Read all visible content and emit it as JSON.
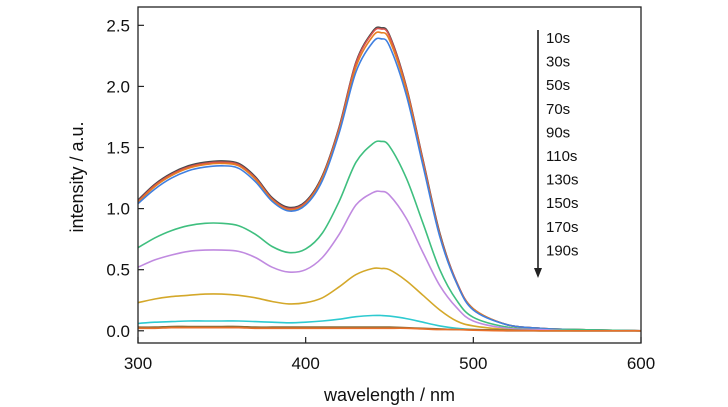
{
  "chart_data": {
    "type": "line",
    "xlabel": "wavelength / nm",
    "ylabel": "intensity / a.u.",
    "xlim": [
      300,
      600
    ],
    "ylim": [
      -0.1,
      2.65
    ],
    "xticks": [
      300,
      400,
      500,
      600
    ],
    "yticks": [
      0.0,
      0.5,
      1.0,
      1.5,
      2.0,
      2.5
    ],
    "ytick_labels": [
      "0.0",
      "0.5",
      "1.0",
      "1.5",
      "2.0",
      "2.5"
    ],
    "grid": false,
    "legend_position": "top-right",
    "legend_arrow": "down",
    "x": [
      300,
      310,
      320,
      330,
      340,
      350,
      360,
      370,
      380,
      390,
      400,
      410,
      420,
      430,
      440,
      445,
      450,
      460,
      470,
      480,
      490,
      500,
      520,
      540,
      560,
      600
    ],
    "series": [
      {
        "name": "10s",
        "color": "#4a4a4a",
        "values": [
          1.07,
          1.2,
          1.29,
          1.35,
          1.38,
          1.39,
          1.37,
          1.26,
          1.09,
          1.01,
          1.06,
          1.27,
          1.67,
          2.2,
          2.45,
          2.48,
          2.42,
          2.0,
          1.4,
          0.8,
          0.4,
          0.18,
          0.05,
          0.02,
          0.01,
          0.0
        ]
      },
      {
        "name": "30s",
        "color": "#d9534f",
        "values": [
          1.06,
          1.19,
          1.28,
          1.34,
          1.37,
          1.38,
          1.36,
          1.25,
          1.08,
          1.0,
          1.05,
          1.26,
          1.66,
          2.19,
          2.44,
          2.47,
          2.41,
          1.99,
          1.39,
          0.79,
          0.4,
          0.18,
          0.05,
          0.02,
          0.01,
          0.0
        ]
      },
      {
        "name": "50s",
        "color": "#e67e22",
        "values": [
          1.05,
          1.18,
          1.27,
          1.33,
          1.36,
          1.37,
          1.35,
          1.24,
          1.07,
          0.99,
          1.04,
          1.25,
          1.64,
          2.16,
          2.41,
          2.44,
          2.38,
          1.97,
          1.37,
          0.78,
          0.39,
          0.18,
          0.05,
          0.02,
          0.01,
          0.0
        ]
      },
      {
        "name": "70s",
        "color": "#3f7fe0",
        "values": [
          1.04,
          1.16,
          1.25,
          1.31,
          1.34,
          1.35,
          1.33,
          1.22,
          1.06,
          0.98,
          1.03,
          1.23,
          1.62,
          2.12,
          2.36,
          2.39,
          2.33,
          1.93,
          1.35,
          0.77,
          0.39,
          0.17,
          0.05,
          0.02,
          0.01,
          0.0
        ]
      },
      {
        "name": "90s",
        "color": "#3fbf7f",
        "values": [
          0.68,
          0.76,
          0.82,
          0.86,
          0.88,
          0.88,
          0.86,
          0.79,
          0.69,
          0.64,
          0.67,
          0.8,
          1.06,
          1.38,
          1.53,
          1.55,
          1.51,
          1.25,
          0.88,
          0.5,
          0.25,
          0.11,
          0.03,
          0.01,
          0.01,
          0.0
        ]
      },
      {
        "name": "110s",
        "color": "#c08ae0",
        "values": [
          0.52,
          0.58,
          0.62,
          0.65,
          0.66,
          0.66,
          0.65,
          0.6,
          0.52,
          0.48,
          0.5,
          0.6,
          0.79,
          1.03,
          1.13,
          1.14,
          1.11,
          0.92,
          0.64,
          0.37,
          0.19,
          0.08,
          0.02,
          0.01,
          0.0,
          0.0
        ]
      },
      {
        "name": "130s",
        "color": "#d4a82a",
        "values": [
          0.23,
          0.26,
          0.28,
          0.29,
          0.3,
          0.3,
          0.29,
          0.27,
          0.24,
          0.22,
          0.23,
          0.27,
          0.36,
          0.46,
          0.51,
          0.51,
          0.5,
          0.41,
          0.29,
          0.17,
          0.08,
          0.04,
          0.01,
          0.0,
          0.0,
          0.0
        ]
      },
      {
        "name": "150s",
        "color": "#2ecad0",
        "values": [
          0.06,
          0.07,
          0.075,
          0.08,
          0.08,
          0.08,
          0.08,
          0.075,
          0.07,
          0.065,
          0.07,
          0.08,
          0.095,
          0.115,
          0.125,
          0.125,
          0.12,
          0.1,
          0.07,
          0.04,
          0.02,
          0.01,
          0.0,
          0.0,
          0.0,
          0.0
        ]
      },
      {
        "name": "170s",
        "color": "#8c6e3a",
        "values": [
          0.03,
          0.03,
          0.035,
          0.035,
          0.035,
          0.035,
          0.035,
          0.03,
          0.03,
          0.03,
          0.03,
          0.03,
          0.03,
          0.03,
          0.03,
          0.03,
          0.03,
          0.025,
          0.02,
          0.015,
          0.01,
          0.01,
          0.005,
          0.0,
          0.0,
          0.0
        ]
      },
      {
        "name": "190s",
        "color": "#e8702a",
        "values": [
          0.02,
          0.02,
          0.025,
          0.025,
          0.025,
          0.025,
          0.025,
          0.02,
          0.02,
          0.02,
          0.02,
          0.02,
          0.02,
          0.02,
          0.02,
          0.02,
          0.02,
          0.02,
          0.015,
          0.01,
          0.01,
          0.005,
          0.0,
          0.0,
          0.0,
          0.0
        ]
      }
    ]
  }
}
